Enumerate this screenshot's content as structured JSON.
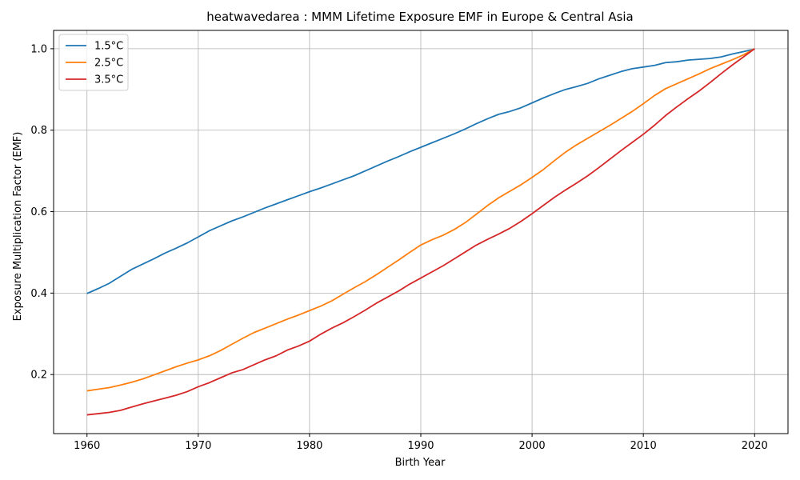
{
  "chart_data": {
    "type": "line",
    "title": "heatwavedarea : MMM Lifetime Exposure EMF in Europe & Central Asia",
    "xlabel": "Birth Year",
    "ylabel": "Exposure Multiplication Factor (EMF)",
    "xlim": [
      1957,
      2023
    ],
    "ylim": [
      0.055,
      1.045
    ],
    "xticks": [
      1960,
      1970,
      1980,
      1990,
      2000,
      2010,
      2020
    ],
    "yticks": [
      0.2,
      0.4,
      0.6,
      0.8,
      1.0
    ],
    "ytick_labels": [
      "0.2",
      "0.4",
      "0.6",
      "0.8",
      "1.0"
    ],
    "grid": true,
    "legend_position": "top-left",
    "x": [
      1960,
      1961,
      1962,
      1963,
      1964,
      1965,
      1966,
      1967,
      1968,
      1969,
      1970,
      1971,
      1972,
      1973,
      1974,
      1975,
      1976,
      1977,
      1978,
      1979,
      1980,
      1981,
      1982,
      1983,
      1984,
      1985,
      1986,
      1987,
      1988,
      1989,
      1990,
      1991,
      1992,
      1993,
      1994,
      1995,
      1996,
      1997,
      1998,
      1999,
      2000,
      2001,
      2002,
      2003,
      2004,
      2005,
      2006,
      2007,
      2008,
      2009,
      2010,
      2011,
      2012,
      2013,
      2014,
      2015,
      2016,
      2017,
      2018,
      2019,
      2020
    ],
    "series": [
      {
        "name": "1.5°C",
        "color": "#1f77b4",
        "values": [
          0.399,
          0.411,
          0.424,
          0.441,
          0.458,
          0.471,
          0.484,
          0.498,
          0.51,
          0.523,
          0.538,
          0.553,
          0.565,
          0.577,
          0.587,
          0.598,
          0.609,
          0.619,
          0.629,
          0.639,
          0.649,
          0.658,
          0.668,
          0.678,
          0.688,
          0.7,
          0.712,
          0.724,
          0.735,
          0.747,
          0.758,
          0.769,
          0.78,
          0.791,
          0.803,
          0.816,
          0.828,
          0.839,
          0.846,
          0.855,
          0.867,
          0.879,
          0.89,
          0.9,
          0.907,
          0.915,
          0.926,
          0.935,
          0.944,
          0.951,
          0.955,
          0.959,
          0.966,
          0.968,
          0.972,
          0.974,
          0.976,
          0.98,
          0.987,
          0.993,
          0.999
        ]
      },
      {
        "name": "2.5°C",
        "color": "#ff7f0e",
        "values": [
          0.16,
          0.164,
          0.168,
          0.174,
          0.181,
          0.189,
          0.199,
          0.209,
          0.219,
          0.228,
          0.236,
          0.246,
          0.259,
          0.274,
          0.289,
          0.303,
          0.314,
          0.325,
          0.336,
          0.346,
          0.357,
          0.368,
          0.381,
          0.397,
          0.413,
          0.428,
          0.445,
          0.463,
          0.481,
          0.5,
          0.518,
          0.531,
          0.542,
          0.556,
          0.573,
          0.594,
          0.615,
          0.634,
          0.65,
          0.666,
          0.684,
          0.703,
          0.725,
          0.746,
          0.764,
          0.78,
          0.796,
          0.812,
          0.829,
          0.846,
          0.865,
          0.885,
          0.902,
          0.914,
          0.926,
          0.938,
          0.951,
          0.962,
          0.973,
          0.985,
          1.0
        ]
      },
      {
        "name": "3.5°C",
        "color": "#d62728",
        "values": [
          0.101,
          0.104,
          0.107,
          0.112,
          0.12,
          0.128,
          0.135,
          0.142,
          0.149,
          0.158,
          0.17,
          0.18,
          0.192,
          0.204,
          0.212,
          0.224,
          0.236,
          0.246,
          0.26,
          0.27,
          0.282,
          0.299,
          0.314,
          0.327,
          0.342,
          0.358,
          0.375,
          0.39,
          0.405,
          0.422,
          0.437,
          0.452,
          0.467,
          0.484,
          0.501,
          0.518,
          0.532,
          0.545,
          0.559,
          0.576,
          0.595,
          0.615,
          0.635,
          0.653,
          0.67,
          0.688,
          0.708,
          0.729,
          0.75,
          0.77,
          0.79,
          0.812,
          0.836,
          0.857,
          0.877,
          0.896,
          0.917,
          0.939,
          0.96,
          0.98,
          1.0
        ]
      }
    ]
  }
}
